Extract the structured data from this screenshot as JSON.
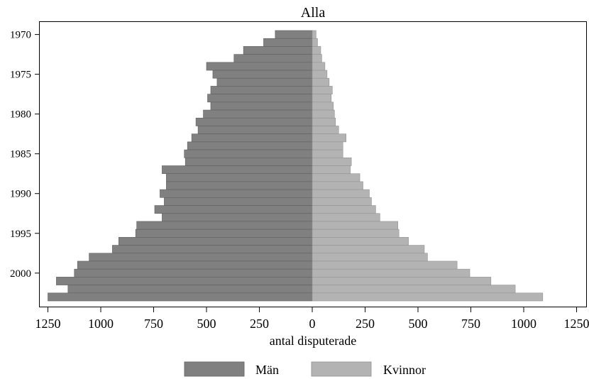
{
  "chart_data": {
    "type": "bar",
    "orientation": "horizontal",
    "layout": "population-pyramid",
    "title": "Alla",
    "xlabel": "antal disputerade",
    "xlim": [
      -1250,
      1250
    ],
    "x_ticks": [
      -1250,
      -1000,
      -750,
      -500,
      -250,
      0,
      250,
      500,
      750,
      1000,
      1250
    ],
    "x_tick_labels": [
      "1250",
      "1000",
      "750",
      "500",
      "250",
      "0",
      "250",
      "500",
      "750",
      "1000",
      "1250"
    ],
    "y_ticks": [
      1970,
      1975,
      1980,
      1985,
      1990,
      1995,
      2000
    ],
    "y_tick_labels": [
      "1970",
      "1975",
      "1980",
      "1985",
      "1990",
      "1995",
      "2000"
    ],
    "categories": [
      1970,
      1971,
      1972,
      1973,
      1974,
      1975,
      1976,
      1977,
      1978,
      1979,
      1980,
      1981,
      1982,
      1983,
      1984,
      1985,
      1986,
      1987,
      1988,
      1989,
      1990,
      1991,
      1992,
      1993,
      1994,
      1995,
      1996,
      1997,
      1998,
      1999,
      2000,
      2001,
      2002,
      2003
    ],
    "series": [
      {
        "name": "Män",
        "color": "#808080",
        "side": "left",
        "values": [
          175,
          230,
          325,
          370,
          500,
          470,
          450,
          480,
          495,
          480,
          515,
          550,
          540,
          570,
          590,
          605,
          600,
          710,
          690,
          690,
          720,
          700,
          745,
          710,
          830,
          835,
          915,
          945,
          1055,
          1110,
          1125,
          1210,
          1155,
          1250
        ]
      },
      {
        "name": "Kvinnor",
        "color": "#b3b3b3",
        "side": "right",
        "values": [
          18,
          25,
          40,
          45,
          60,
          70,
          80,
          95,
          90,
          100,
          105,
          110,
          125,
          160,
          145,
          145,
          185,
          180,
          225,
          240,
          270,
          280,
          300,
          320,
          405,
          410,
          455,
          530,
          545,
          685,
          745,
          845,
          960,
          1090
        ]
      }
    ],
    "grid": false,
    "legend_position": "bottom"
  }
}
